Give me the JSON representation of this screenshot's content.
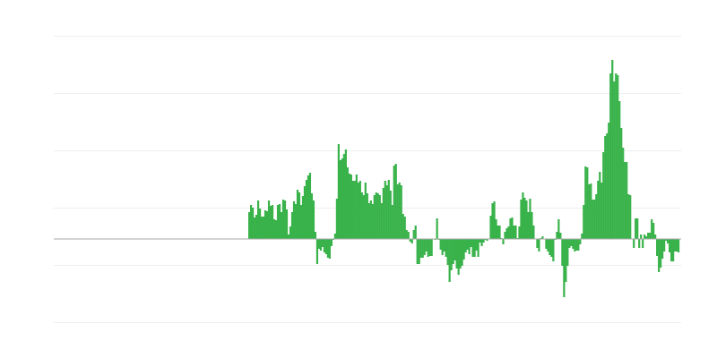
{
  "chart_data": {
    "type": "bar",
    "title": "",
    "xlabel": "",
    "ylabel": "",
    "ylim": [
      -93,
      227
    ],
    "grid": true,
    "colors": {
      "bar": "#39b24a",
      "grid": "#eeeeee",
      "baseline": "#aaaaaa"
    },
    "leading_empty_fraction": 0.31,
    "values": [
      30,
      38,
      35,
      24,
      27,
      43,
      34,
      25,
      25,
      32,
      31,
      43,
      37,
      38,
      22,
      21,
      38,
      39,
      30,
      44,
      43,
      33,
      5,
      14,
      30,
      42,
      39,
      55,
      52,
      38,
      48,
      59,
      66,
      71,
      74,
      51,
      43,
      8,
      -28,
      -11,
      -13,
      -9,
      -15,
      -17,
      -21,
      -22,
      -8,
      -1,
      6,
      45,
      106,
      88,
      90,
      95,
      100,
      80,
      73,
      72,
      65,
      65,
      72,
      63,
      65,
      52,
      49,
      63,
      51,
      40,
      43,
      39,
      49,
      52,
      51,
      49,
      40,
      57,
      65,
      60,
      66,
      54,
      38,
      82,
      84,
      61,
      63,
      60,
      28,
      25,
      10,
      8,
      -3,
      -5,
      10,
      15,
      -28,
      -28,
      -21,
      -21,
      -18,
      -14,
      -20,
      -19,
      -19,
      0,
      -1,
      23,
      -1,
      -12,
      -18,
      -14,
      -20,
      -29,
      -48,
      -35,
      -28,
      -24,
      -33,
      -40,
      -33,
      -30,
      -23,
      -15,
      -12,
      -17,
      -9,
      -20,
      -20,
      -13,
      -20,
      -4,
      -8,
      -4,
      -1,
      -2,
      0,
      26,
      40,
      42,
      22,
      15,
      15,
      1,
      -6,
      8,
      12,
      14,
      23,
      24,
      15,
      15,
      1,
      14,
      44,
      52,
      46,
      43,
      30,
      45,
      30,
      15,
      0,
      -10,
      -14,
      1,
      3,
      0,
      -11,
      -14,
      -18,
      -20,
      -25,
      -1,
      8,
      22,
      7,
      -30,
      -65,
      -48,
      -30,
      -10,
      -8,
      -11,
      -14,
      -13,
      -13,
      -6,
      6,
      38,
      81,
      80,
      61,
      62,
      44,
      44,
      50,
      65,
      75,
      63,
      97,
      115,
      118,
      130,
      185,
      200,
      176,
      185,
      183,
      154,
      124,
      102,
      86,
      86,
      50,
      49,
      0,
      -10,
      23,
      23,
      -10,
      5,
      -10,
      5,
      3,
      7,
      7,
      22,
      18,
      5,
      -19,
      -37,
      -32,
      -22,
      -14,
      -2,
      -5,
      -15,
      -25,
      -25,
      -14,
      -14,
      -15
    ]
  }
}
